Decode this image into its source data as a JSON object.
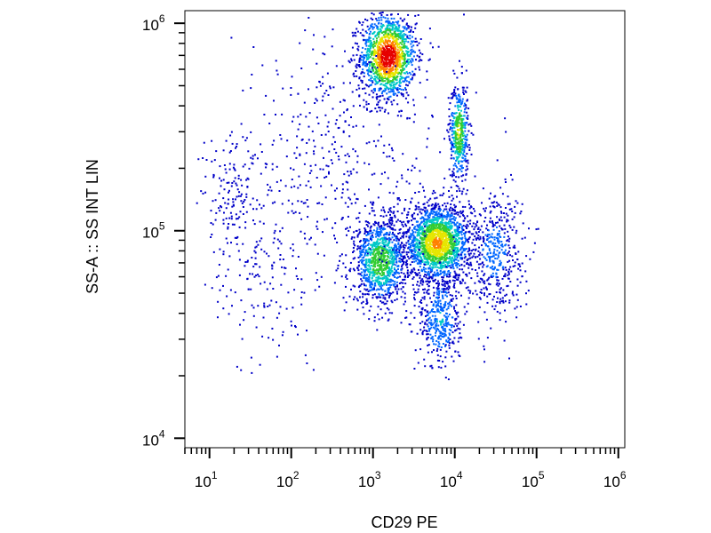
{
  "chart_data": {
    "type": "scatter",
    "style": "flow-cytometry density dot plot",
    "xlabel": "CD29 PE",
    "ylabel": "SS-A :: SS INT LIN",
    "xscale": "log",
    "yscale": "log",
    "xlim": [
      5,
      1200000
    ],
    "ylim": [
      9000,
      1150000
    ],
    "x_ticks": [
      {
        "base": "10",
        "exp": "1",
        "value": 10
      },
      {
        "base": "10",
        "exp": "2",
        "value": 100
      },
      {
        "base": "10",
        "exp": "3",
        "value": 1000
      },
      {
        "base": "10",
        "exp": "4",
        "value": 10000
      },
      {
        "base": "10",
        "exp": "5",
        "value": 100000
      },
      {
        "base": "10",
        "exp": "6",
        "value": 1000000
      }
    ],
    "y_ticks": [
      {
        "base": "10",
        "exp": "4",
        "value": 10000
      },
      {
        "base": "10",
        "exp": "5",
        "value": 100000
      },
      {
        "base": "10",
        "exp": "6",
        "value": 1000000
      }
    ],
    "color_scale": [
      "#0000c8",
      "#0066ff",
      "#00c8c8",
      "#33cc33",
      "#e6e600",
      "#ff8000",
      "#e60000"
    ],
    "populations": [
      {
        "center_x": 1500,
        "center_y": 700000,
        "spread_logx": 0.17,
        "spread_logy": 0.1,
        "peak_density": 1.0,
        "points": 1400
      },
      {
        "center_x": 11000,
        "center_y": 300000,
        "spread_logx": 0.06,
        "spread_logy": 0.12,
        "peak_density": 0.6,
        "points": 450
      },
      {
        "center_x": 6000,
        "center_y": 88000,
        "spread_logx": 0.2,
        "spread_logy": 0.09,
        "peak_density": 0.75,
        "points": 1900
      },
      {
        "center_x": 1200,
        "center_y": 72000,
        "spread_logx": 0.16,
        "spread_logy": 0.1,
        "peak_density": 0.55,
        "points": 1000
      },
      {
        "center_x": 6500,
        "center_y": 38000,
        "spread_logx": 0.13,
        "spread_logy": 0.12,
        "peak_density": 0.3,
        "points": 400
      },
      {
        "center_x": 30000,
        "center_y": 80000,
        "spread_logx": 0.18,
        "spread_logy": 0.15,
        "peak_density": 0.2,
        "points": 450
      },
      {
        "center_x": 20,
        "center_y": 150000,
        "spread_logx": 0.22,
        "spread_logy": 0.15,
        "peak_density": 0.1,
        "points": 160
      },
      {
        "center_x": 40,
        "center_y": 55000,
        "spread_logx": 0.3,
        "spread_logy": 0.2,
        "peak_density": 0.05,
        "points": 130
      },
      {
        "center_x": 500,
        "center_y": 200000,
        "spread_logx": 0.6,
        "spread_logy": 0.35,
        "peak_density": 0.05,
        "points": 500
      }
    ]
  }
}
